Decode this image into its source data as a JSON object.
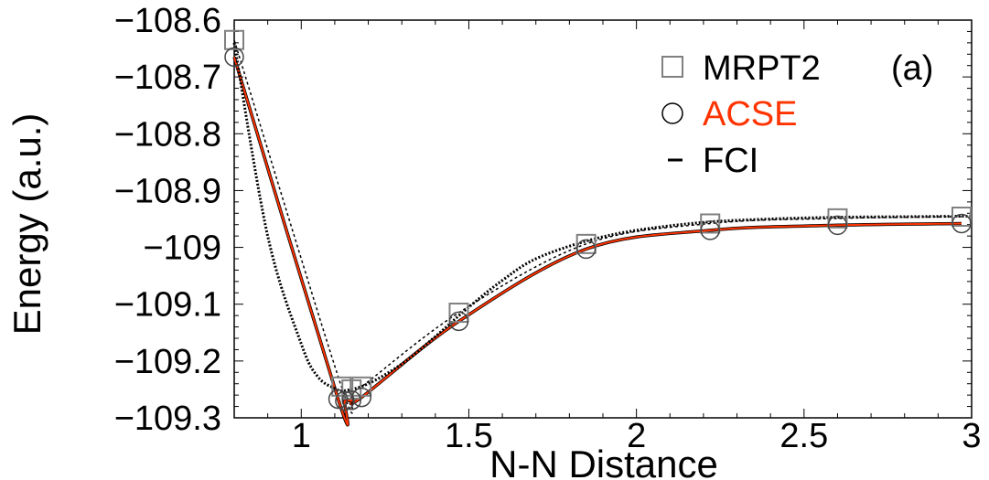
{
  "chart_data": {
    "type": "line",
    "title": "",
    "xlabel": "N-N Distance",
    "ylabel": "Energy (a.u.)",
    "xlim": [
      0.8,
      3.0
    ],
    "ylim": [
      -109.3,
      -108.6
    ],
    "grid": false,
    "legend_position": "top-right",
    "annotation": "(a)",
    "x_ticks": [
      {
        "value": 1,
        "label": "1"
      },
      {
        "value": 1.5,
        "label": "1.5"
      },
      {
        "value": 2,
        "label": "2"
      },
      {
        "value": 2.5,
        "label": "2.5"
      },
      {
        "value": 3,
        "label": "3"
      }
    ],
    "y_ticks": [
      {
        "value": -108.6,
        "label": "−108.6"
      },
      {
        "value": -108.7,
        "label": "−108.7"
      },
      {
        "value": -108.8,
        "label": "−108.8"
      },
      {
        "value": -108.9,
        "label": "−108.9"
      },
      {
        "value": -109.0,
        "label": "−109"
      },
      {
        "value": -109.1,
        "label": "−109.1"
      },
      {
        "value": -109.2,
        "label": "−109.2"
      },
      {
        "value": -109.3,
        "label": "−109.3"
      }
    ],
    "series": [
      {
        "name": "MRPT2",
        "style": "square-markers",
        "color": "#808080",
        "x": [
          0.8,
          1.12,
          1.15,
          1.18,
          1.47,
          1.85,
          2.22,
          2.6,
          2.97
        ],
        "y": [
          -108.635,
          -109.245,
          -109.25,
          -109.245,
          -109.115,
          -108.994,
          -108.958,
          -108.949,
          -108.946
        ]
      },
      {
        "name": "ACSE",
        "style": "circle-markers",
        "color": "#ff3300",
        "x": [
          0.8,
          1.11,
          1.13,
          1.15,
          1.18,
          1.47,
          1.85,
          2.22,
          2.6,
          2.97
        ],
        "y": [
          -108.665,
          -109.267,
          -109.27,
          -109.269,
          -109.264,
          -109.13,
          -109.003,
          -108.97,
          -108.961,
          -108.958
        ]
      },
      {
        "name": "FCI",
        "style": "dashed-line",
        "color": "#000000",
        "x": [
          0.8,
          0.9,
          1.0,
          1.05,
          1.1,
          1.13,
          1.2,
          1.3,
          1.4,
          1.5,
          1.6,
          1.7,
          1.85,
          2.0,
          2.2,
          2.4,
          2.6,
          2.8,
          3.0
        ],
        "y": [
          -108.64,
          -108.98,
          -109.17,
          -109.228,
          -109.248,
          -109.252,
          -109.24,
          -109.205,
          -109.157,
          -109.105,
          -109.058,
          -109.02,
          -108.989,
          -108.97,
          -108.956,
          -108.95,
          -108.947,
          -108.946,
          -108.945
        ]
      }
    ]
  }
}
